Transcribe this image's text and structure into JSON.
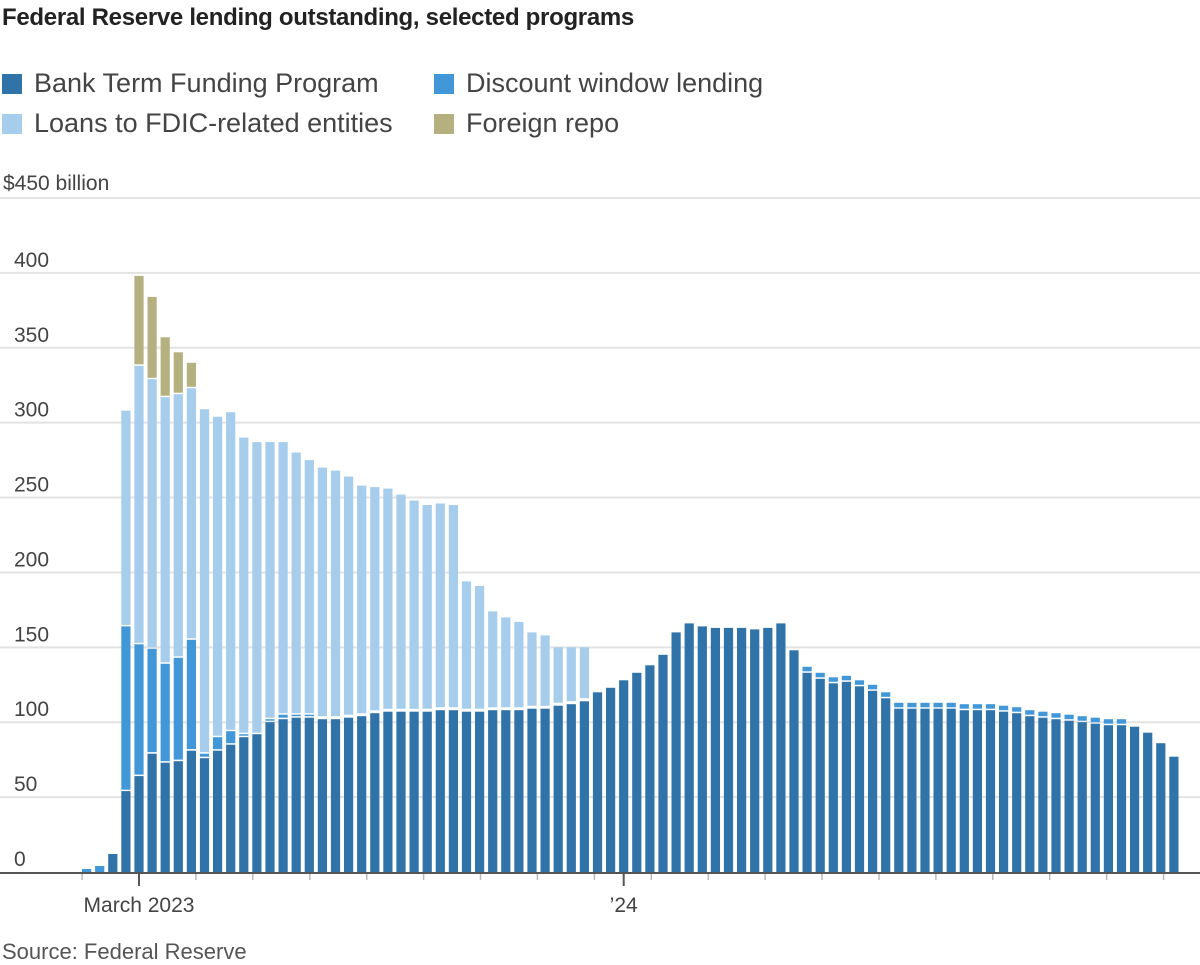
{
  "title": "Federal Reserve lending outstanding, selected programs",
  "legend": [
    {
      "label": "Bank Term Funding Program",
      "color": "#2f73a8"
    },
    {
      "label": "Discount window lending",
      "color": "#4197d8"
    },
    {
      "label": "Loans to FDIC-related entities",
      "color": "#a6cdeb"
    },
    {
      "label": "Foreign repo",
      "color": "#b5b07f"
    }
  ],
  "source": "Source: Federal Reserve",
  "chart_data": {
    "type": "bar",
    "stacked": true,
    "title": "Federal Reserve lending outstanding, selected programs",
    "ylabel_unit": "$450 billion",
    "ylim": [
      0,
      450
    ],
    "yticks": [
      0,
      50,
      100,
      150,
      200,
      250,
      300,
      350,
      400
    ],
    "y_top_label": "$450 billion",
    "x_frequency": "weekly",
    "x_tick_labels": [
      {
        "label": "March 2023",
        "bar_index": 4
      },
      {
        "label": "’24",
        "bar_index": 41
      }
    ],
    "series": [
      {
        "name": "Bank Term Funding Program",
        "color": "#2f73a8",
        "values": [
          0,
          0,
          12,
          54,
          64,
          79,
          73,
          74,
          81,
          76,
          81,
          85,
          90,
          92,
          100,
          102,
          103,
          103,
          102,
          102,
          103,
          104,
          106,
          107,
          107,
          107,
          107,
          108,
          108,
          107,
          107,
          108,
          108,
          108,
          109,
          109,
          111,
          112,
          114,
          120,
          123,
          128,
          133,
          138,
          145,
          160,
          166,
          164,
          163,
          163,
          163,
          162,
          163,
          166,
          148,
          133,
          129,
          126,
          127,
          124,
          121,
          116,
          109,
          109,
          109,
          109,
          109,
          108,
          108,
          108,
          107,
          106,
          104,
          103,
          102,
          101,
          100,
          99,
          98,
          98,
          97,
          93,
          86,
          77
        ]
      },
      {
        "name": "Discount window lending",
        "color": "#4197d8",
        "values": [
          2,
          4,
          0,
          110,
          88,
          70,
          66,
          69,
          74,
          3,
          9,
          9,
          2,
          0,
          2,
          3,
          2,
          2,
          1,
          1,
          1,
          1,
          1,
          1,
          1,
          1,
          1,
          1,
          1,
          1,
          1,
          1,
          1,
          1,
          1,
          1,
          1,
          1,
          1,
          1,
          1,
          1,
          1,
          1,
          1,
          1,
          1,
          1,
          1,
          1,
          1,
          1,
          1,
          1,
          1,
          4,
          4,
          4,
          4,
          4,
          4,
          4,
          4,
          4,
          4,
          4,
          4,
          4,
          4,
          4,
          4,
          4,
          4,
          4,
          4,
          4,
          4,
          4,
          4,
          4,
          1,
          1,
          1,
          1
        ]
      },
      {
        "name": "Loans to FDIC-related entities",
        "color": "#a6cdeb",
        "values": [
          0,
          0,
          0,
          144,
          186,
          180,
          178,
          176,
          168,
          230,
          214,
          213,
          198,
          195,
          185,
          182,
          175,
          170,
          167,
          165,
          160,
          153,
          150,
          148,
          144,
          140,
          137,
          137,
          136,
          86,
          83,
          65,
          61,
          58,
          50,
          48,
          38,
          37,
          35,
          0,
          0,
          0,
          0,
          0,
          0,
          0,
          0,
          0,
          0,
          0,
          0,
          0,
          0,
          0,
          0,
          0,
          0,
          0,
          0,
          0,
          0,
          0,
          0,
          0,
          0,
          0,
          0,
          0,
          0,
          0,
          0,
          0,
          0,
          0,
          0,
          0,
          0,
          0,
          0,
          0,
          0,
          0,
          0,
          0
        ]
      },
      {
        "name": "Foreign repo",
        "color": "#b5b07f",
        "values": [
          0,
          0,
          0,
          0,
          60,
          55,
          40,
          28,
          17,
          0,
          0,
          0,
          0,
          0,
          0,
          0,
          0,
          0,
          0,
          0,
          0,
          0,
          0,
          0,
          0,
          0,
          0,
          0,
          0,
          0,
          0,
          0,
          0,
          0,
          0,
          0,
          0,
          0,
          0,
          0,
          0,
          0,
          0,
          0,
          0,
          0,
          0,
          0,
          0,
          0,
          0,
          0,
          0,
          0,
          0,
          0,
          0,
          0,
          0,
          0,
          0,
          0,
          0,
          0,
          0,
          0,
          0,
          0,
          0,
          0,
          0,
          0,
          0,
          0,
          0,
          0,
          0,
          0,
          0,
          0,
          0,
          0,
          0,
          0
        ]
      }
    ]
  }
}
